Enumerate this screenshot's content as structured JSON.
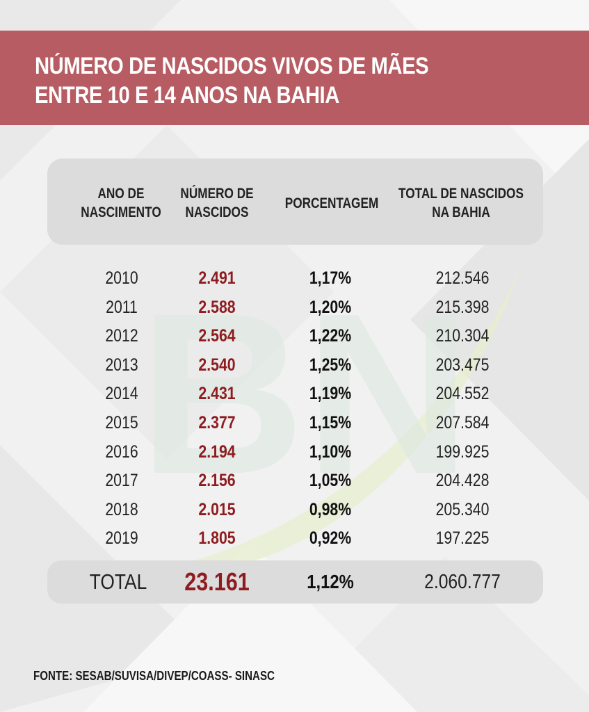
{
  "title": "NÚMERO DE NASCIDOS VIVOS DE MÃES\nENTRE 10 E 14 ANOS NA BAHIA",
  "colors": {
    "title_band": "#b65c62",
    "header_box": "#dcdcdc",
    "number_red": "#8e1c1f",
    "background": "#f2f2f2"
  },
  "watermark_logo": "BN",
  "chart_data": {
    "type": "table",
    "title": "NÚMERO DE NASCIDOS VIVOS DE MÃES ENTRE 10 E 14 ANOS NA BAHIA",
    "columns": [
      "ANO DE\nNASCIMENTO",
      "NÚMERO DE\nNASCIDOS",
      "PORCENTAGEM",
      "TOTAL DE NASCIDOS\nNA BAHIA"
    ],
    "rows": [
      [
        "2010",
        "2.491",
        "1,17%",
        "212.546"
      ],
      [
        "2011",
        "2.588",
        "1,20%",
        "215.398"
      ],
      [
        "2012",
        "2.564",
        "1,22%",
        "210.304"
      ],
      [
        "2013",
        "2.540",
        "1,25%",
        "203.475"
      ],
      [
        "2014",
        "2.431",
        "1,19%",
        "204.552"
      ],
      [
        "2015",
        "2.377",
        "1,15%",
        "207.584"
      ],
      [
        "2016",
        "2.194",
        "1,10%",
        "199.925"
      ],
      [
        "2017",
        "2.156",
        "1,05%",
        "204.428"
      ],
      [
        "2018",
        "2.015",
        "0,98%",
        "205.340"
      ],
      [
        "2019",
        "1.805",
        "0,92%",
        "197.225"
      ]
    ],
    "total": [
      "TOTAL",
      "23.161",
      "1,12%",
      "2.060.777"
    ]
  },
  "source": "FONTE: SESAB/SUVISA/DIVEP/COASS- SINASC"
}
